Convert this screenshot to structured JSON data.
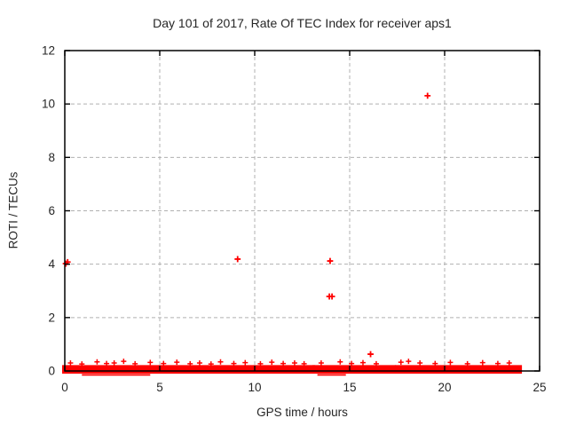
{
  "page": {
    "background": "#ffffff"
  },
  "chart_data": {
    "type": "scatter",
    "title": "Day 101 of 2017, Rate Of TEC Index for receiver aps1",
    "xlabel": "GPS time / hours",
    "ylabel": "ROTI / TECUs",
    "xlim": [
      0,
      25
    ],
    "ylim": [
      0,
      12
    ],
    "xticks": [
      0,
      5,
      10,
      15,
      20,
      25
    ],
    "yticks": [
      0,
      2,
      4,
      6,
      8,
      10,
      12
    ],
    "grid": true,
    "legend": "none",
    "marker": "plus",
    "marker_color": "#ff0000",
    "grid_color": "#b0b0b0",
    "axis_color": "#000000",
    "outlier_points": [
      [
        0.05,
        4.02
      ],
      [
        0.15,
        4.08
      ],
      [
        9.1,
        4.19
      ],
      [
        13.97,
        4.12
      ],
      [
        13.93,
        2.79
      ],
      [
        14.07,
        2.79
      ],
      [
        16.1,
        0.63
      ],
      [
        19.1,
        10.31
      ]
    ],
    "baseline_band": {
      "note": "dense cluster of ROTI plus-markers near 0 TECU across the whole day",
      "segments_hours": [
        [
          0.0,
          13.04
        ],
        [
          13.18,
          17.3
        ],
        [
          17.52,
          23.93
        ]
      ],
      "y_top": 0.22,
      "y_bottom": -0.1,
      "spikes": [
        [
          0.3,
          0.3
        ],
        [
          0.9,
          0.26
        ],
        [
          1.7,
          0.34
        ],
        [
          2.2,
          0.28
        ],
        [
          2.6,
          0.3
        ],
        [
          3.1,
          0.36
        ],
        [
          3.7,
          0.27
        ],
        [
          4.5,
          0.32
        ],
        [
          5.2,
          0.28
        ],
        [
          5.9,
          0.33
        ],
        [
          6.6,
          0.27
        ],
        [
          7.1,
          0.3
        ],
        [
          7.7,
          0.26
        ],
        [
          8.2,
          0.34
        ],
        [
          8.9,
          0.28
        ],
        [
          9.5,
          0.31
        ],
        [
          10.3,
          0.27
        ],
        [
          10.9,
          0.33
        ],
        [
          11.5,
          0.28
        ],
        [
          12.1,
          0.3
        ],
        [
          12.6,
          0.27
        ],
        [
          13.5,
          0.3
        ],
        [
          14.5,
          0.34
        ],
        [
          15.1,
          0.28
        ],
        [
          15.7,
          0.31
        ],
        [
          16.4,
          0.27
        ],
        [
          17.7,
          0.33
        ],
        [
          18.1,
          0.36
        ],
        [
          18.7,
          0.3
        ],
        [
          19.5,
          0.28
        ],
        [
          20.3,
          0.32
        ],
        [
          21.2,
          0.27
        ],
        [
          22.0,
          0.31
        ],
        [
          22.8,
          0.28
        ],
        [
          23.4,
          0.3
        ]
      ],
      "low_marks_hours": [
        [
          0.9,
          4.5
        ],
        [
          13.3,
          14.8
        ]
      ]
    }
  }
}
